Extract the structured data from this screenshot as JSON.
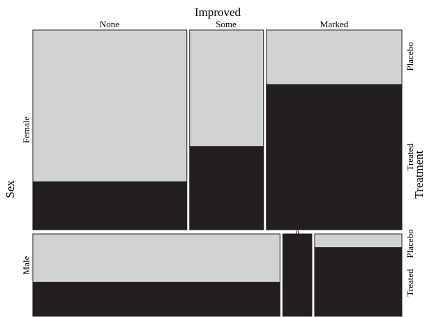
{
  "colors": {
    "placebo": "#d1d2d4",
    "treated": "#231f20",
    "border": "#231f20"
  },
  "chart_data": {
    "type": "mosaic",
    "title": "",
    "xlabel": "Improved",
    "ylabel": "Sex",
    "right_label": "Treatment",
    "improved_levels": [
      "None",
      "Some",
      "Marked"
    ],
    "sex_levels": [
      "Female",
      "Male"
    ],
    "treatment_levels": [
      "Placebo",
      "Treated"
    ],
    "cells": {
      "Female": {
        "None": {
          "Placebo": 19,
          "Treated": 6
        },
        "Some": {
          "Placebo": 7,
          "Treated": 5
        },
        "Marked": {
          "Placebo": 6,
          "Treated": 16
        }
      },
      "Male": {
        "None": {
          "Placebo": 10,
          "Treated": 7
        },
        "Some": {
          "Placebo": 0,
          "Treated": 2
        },
        "Marked": {
          "Placebo": 1,
          "Treated": 5
        }
      }
    },
    "zero_cell_label": "0"
  }
}
